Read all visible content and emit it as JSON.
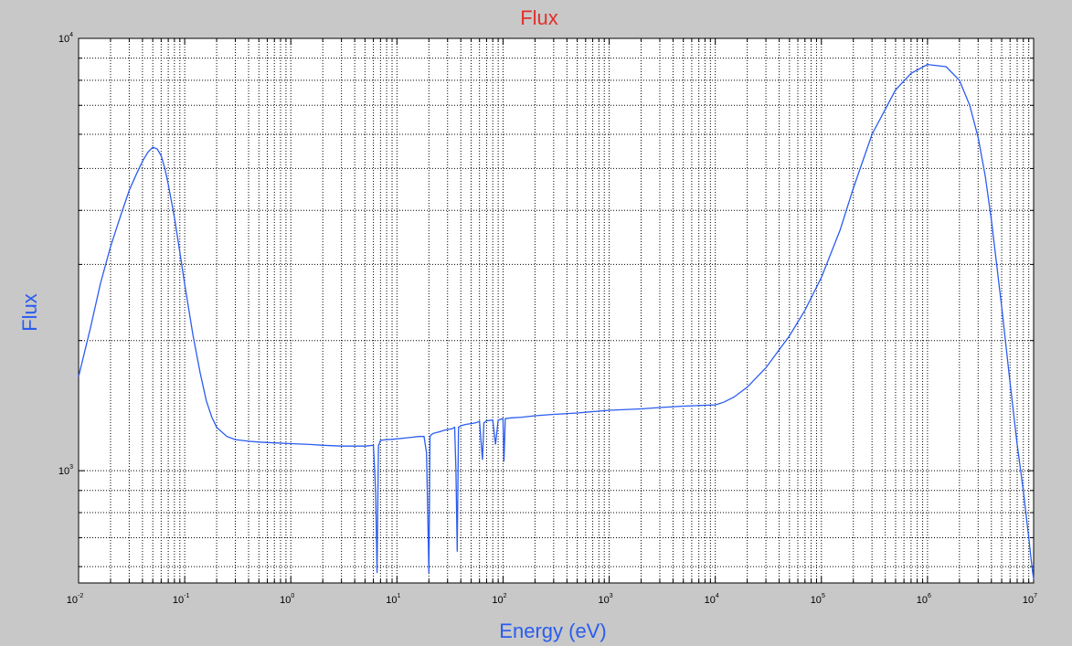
{
  "chart_data": {
    "type": "line",
    "title": "Flux",
    "xlabel": "Energy (eV)",
    "ylabel": "Flux",
    "x_scale": "log",
    "y_scale": "log",
    "xlim": [
      0.01,
      10000000
    ],
    "ylim": [
      550,
      10000
    ],
    "grid": true,
    "x_ticks": [
      {
        "base": "10",
        "exp": "-2"
      },
      {
        "base": "10",
        "exp": "-1"
      },
      {
        "base": "10",
        "exp": "0"
      },
      {
        "base": "10",
        "exp": "1"
      },
      {
        "base": "10",
        "exp": "2"
      },
      {
        "base": "10",
        "exp": "3"
      },
      {
        "base": "10",
        "exp": "4"
      },
      {
        "base": "10",
        "exp": "5"
      },
      {
        "base": "10",
        "exp": "6"
      },
      {
        "base": "10",
        "exp": "7"
      }
    ],
    "y_ticks": [
      {
        "base": "10",
        "exp": "3"
      },
      {
        "base": "10",
        "exp": "4"
      }
    ],
    "line_color": "#2a5cf0",
    "series": [
      {
        "x": [
          0.01,
          0.013,
          0.016,
          0.02,
          0.025,
          0.03,
          0.035,
          0.04,
          0.045,
          0.05,
          0.055,
          0.06,
          0.065,
          0.07,
          0.08,
          0.09,
          0.1,
          0.12,
          0.14,
          0.16,
          0.18,
          0.2,
          0.25,
          0.3,
          0.4,
          0.5,
          0.7,
          1,
          1.5,
          2,
          3,
          4,
          5,
          6,
          6.3,
          6.5,
          6.7,
          7,
          7.5,
          8,
          9,
          10,
          12,
          14,
          16,
          18,
          19,
          20,
          20.5,
          21,
          22,
          25,
          28,
          30,
          33,
          35,
          36,
          37,
          38,
          40,
          45,
          50,
          55,
          60,
          64,
          66,
          70,
          80,
          85,
          90,
          95,
          100,
          102,
          105,
          120,
          150,
          200,
          300,
          500,
          700,
          1000,
          2000,
          3000,
          5000,
          7000,
          10000,
          12000,
          15000,
          20000,
          30000,
          50000,
          70000,
          100000,
          150000,
          200000,
          300000,
          500000,
          700000,
          1000000,
          1500000,
          2000000,
          2500000,
          3000000,
          3500000,
          4000000,
          5000000,
          6000000,
          7000000,
          8000000,
          9000000,
          9500000,
          10000000
        ],
        "y": [
          1650,
          2150,
          2700,
          3300,
          3900,
          4450,
          4850,
          5200,
          5450,
          5600,
          5550,
          5350,
          5000,
          4600,
          3850,
          3200,
          2700,
          2050,
          1680,
          1450,
          1330,
          1260,
          1200,
          1180,
          1170,
          1165,
          1160,
          1155,
          1150,
          1145,
          1140,
          1140,
          1140,
          1145,
          900,
          580,
          1140,
          1175,
          1178,
          1180,
          1182,
          1185,
          1190,
          1195,
          1200,
          1200,
          1100,
          580,
          1200,
          1210,
          1220,
          1230,
          1240,
          1245,
          1250,
          1260,
          1000,
          650,
          1260,
          1270,
          1280,
          1285,
          1290,
          1300,
          1060,
          1290,
          1305,
          1310,
          1150,
          1310,
          1315,
          1320,
          1050,
          1320,
          1325,
          1330,
          1340,
          1350,
          1360,
          1370,
          1380,
          1390,
          1400,
          1410,
          1415,
          1420,
          1440,
          1480,
          1560,
          1730,
          2050,
          2350,
          2800,
          3600,
          4500,
          6000,
          7600,
          8300,
          8700,
          8600,
          8000,
          7000,
          5900,
          4800,
          3800,
          2400,
          1600,
          1150,
          900,
          700,
          620,
          560
        ]
      }
    ]
  }
}
